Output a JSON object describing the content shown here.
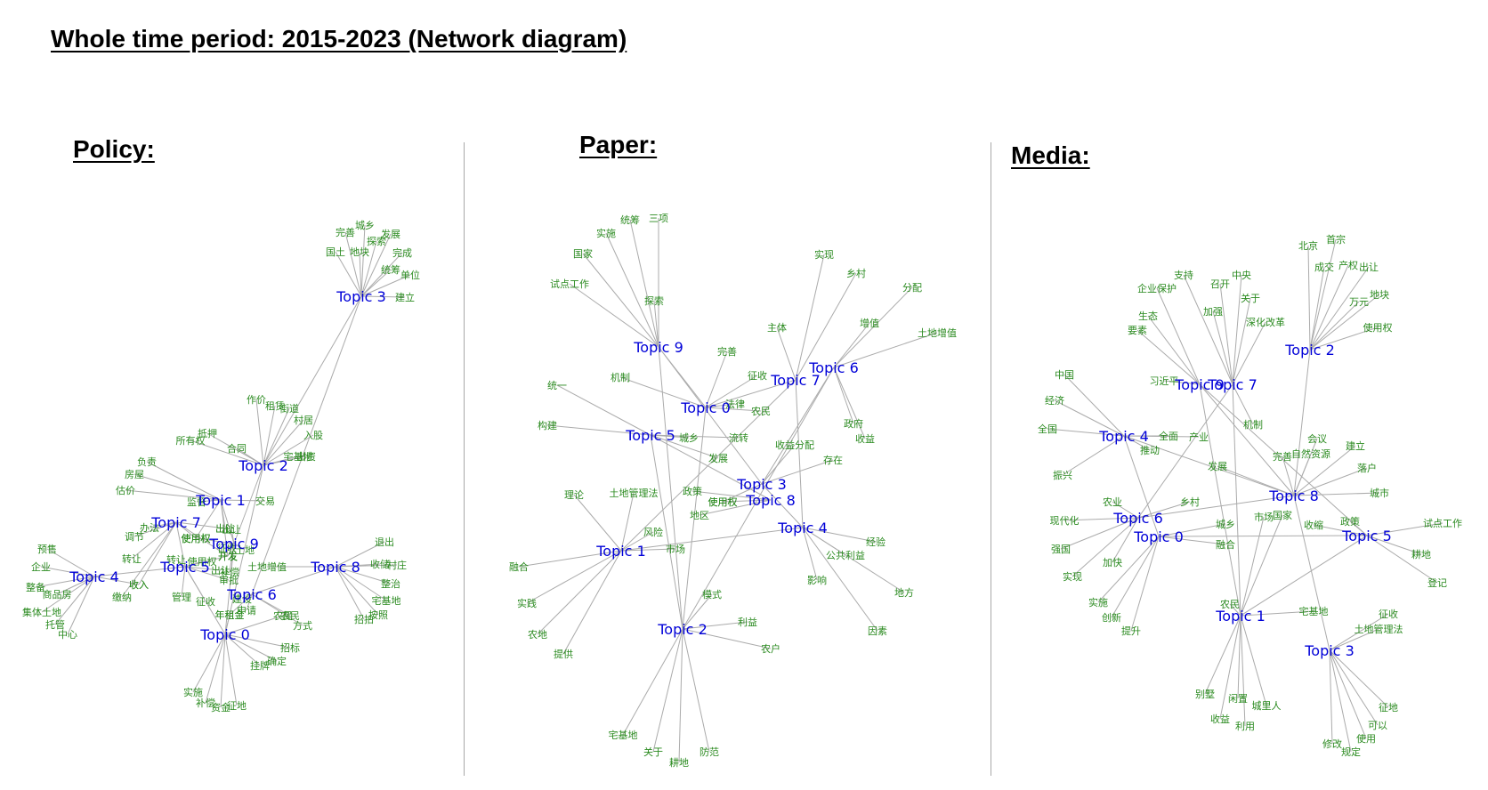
{
  "title": "Whole time period: 2015-2023 (Network diagram)",
  "panels": [
    {
      "id": "policy",
      "title": "Policy:",
      "topics": [
        {
          "label": "Topic 3",
          "words": [
            "完善",
            "城乡",
            "发展",
            "探索",
            "国土",
            "地块",
            "完成",
            "统筹",
            "单位",
            "建立"
          ]
        },
        {
          "label": "Topic 2",
          "words": [
            "作价",
            "租赁",
            "街道",
            "村居",
            "入股",
            "出资",
            "宅基地",
            "合同",
            "抵押",
            "所有权"
          ]
        },
        {
          "label": "Topic 1",
          "words": [
            "负责",
            "房屋",
            "估价",
            "监督",
            "交易",
            "出让",
            "使用权",
            "开发"
          ]
        },
        {
          "label": "Topic 7",
          "words": [
            "办法",
            "调节",
            "转让",
            "收入",
            "缴纳",
            "使用权",
            "出让",
            "开发"
          ]
        },
        {
          "label": "Topic 9",
          "words": [
            "征收",
            "土地",
            "补偿",
            "出让",
            "使用权",
            "开发"
          ]
        },
        {
          "label": "Topic 5",
          "words": [
            "管理",
            "征收",
            "审批",
            "出让",
            "使用权",
            "开发",
            "转让"
          ]
        },
        {
          "label": "Topic 4",
          "words": [
            "预售",
            "企业",
            "整备",
            "商品房",
            "集体土地",
            "托管",
            "中心",
            "收入"
          ]
        },
        {
          "label": "Topic 6",
          "words": [
            "申请",
            "年租金",
            "建设",
            "农民",
            "方式"
          ]
        },
        {
          "label": "Topic 8",
          "words": [
            "退出",
            "收储",
            "村庄",
            "整治",
            "宅基地",
            "按照",
            "招拍",
            "土地增值"
          ]
        },
        {
          "label": "Topic 0",
          "words": [
            "实施",
            "补偿",
            "资金",
            "征地",
            "挂牌",
            "确定",
            "招标",
            "农民",
            "年租金"
          ]
        }
      ]
    },
    {
      "id": "paper",
      "title": "Paper:",
      "topics": [
        {
          "label": "Topic 9",
          "words": [
            "统筹",
            "三项",
            "实施",
            "国家",
            "试点工作",
            "探索"
          ]
        },
        {
          "label": "Topic 0",
          "words": [
            "机制",
            "完善",
            "征收",
            "法律",
            "农民"
          ]
        },
        {
          "label": "Topic 7",
          "words": [
            "主体",
            "实现",
            "乡村",
            "征收"
          ]
        },
        {
          "label": "Topic 6",
          "words": [
            "增值",
            "分配",
            "土地增值",
            "政府",
            "收益"
          ]
        },
        {
          "label": "Topic 5",
          "words": [
            "统一",
            "构建",
            "城乡",
            "流转",
            "发展"
          ]
        },
        {
          "label": "Topic 3",
          "words": [
            "收益分配",
            "存在",
            "使用权"
          ]
        },
        {
          "label": "Topic 8",
          "words": [
            "政策",
            "地区",
            "使用权"
          ]
        },
        {
          "label": "Topic 4",
          "words": [
            "经验",
            "公共利益",
            "影响",
            "地方",
            "因素"
          ]
        },
        {
          "label": "Topic 1",
          "words": [
            "理论",
            "土地管理法",
            "融合",
            "风险",
            "市场",
            "实践",
            "农地",
            "提供"
          ]
        },
        {
          "label": "Topic 2",
          "words": [
            "模式",
            "利益",
            "农户",
            "宅基地",
            "关于",
            "耕地",
            "防范"
          ]
        }
      ]
    },
    {
      "id": "media",
      "title": "Media:",
      "topics": [
        {
          "label": "Topic 2",
          "words": [
            "北京",
            "首宗",
            "成交",
            "产权",
            "出让",
            "地块",
            "万元",
            "使用权"
          ]
        },
        {
          "label": "Topic 7",
          "words": [
            "中央",
            "关于",
            "召开",
            "加强",
            "深化改革",
            "支持",
            "机制"
          ]
        },
        {
          "label": "Topic 9",
          "words": [
            "企业保护",
            "生态",
            "要素",
            "习近平"
          ]
        },
        {
          "label": "Topic 4",
          "words": [
            "中国",
            "经济",
            "全国",
            "振兴",
            "推动",
            "全面",
            "产业"
          ]
        },
        {
          "label": "Topic 6",
          "words": [
            "农业",
            "现代化",
            "强国",
            "实现",
            "加快",
            "乡村"
          ]
        },
        {
          "label": "Topic 0",
          "words": [
            "实施",
            "创新",
            "提升",
            "城乡",
            "融合"
          ]
        },
        {
          "label": "Topic 8",
          "words": [
            "完善",
            "自然资源",
            "会议",
            "建立",
            "落户",
            "城市",
            "发展"
          ]
        },
        {
          "label": "Topic 5",
          "words": [
            "政策",
            "试点工作",
            "耕地",
            "登记",
            "收缩"
          ]
        },
        {
          "label": "Topic 1",
          "words": [
            "农民",
            "国家",
            "别墅",
            "闲置",
            "城里人",
            "收益",
            "利用",
            "宅基地",
            "市场"
          ]
        },
        {
          "label": "Topic 3",
          "words": [
            "征收",
            "土地管理法",
            "征地",
            "可以",
            "使用",
            "修改",
            "规定"
          ]
        }
      ]
    }
  ]
}
